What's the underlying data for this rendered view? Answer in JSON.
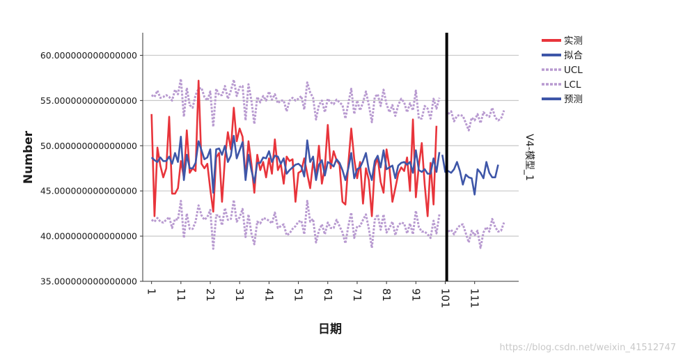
{
  "chart_data": {
    "type": "line",
    "ylabel": "Number",
    "xlabel": "日期",
    "panel_label": "V4-模型_1",
    "ylim": [
      35,
      62.5
    ],
    "yticks": [
      35,
      40,
      45,
      50,
      55,
      60
    ],
    "ytick_labels": [
      "35.000000000000000",
      "40.000000000000000",
      "45.000000000000000",
      "50.000000000000000",
      "55.000000000000000",
      "60.000000000000000"
    ],
    "xlim": [
      -2,
      126
    ],
    "xticks": [
      1,
      11,
      21,
      31,
      41,
      51,
      61,
      71,
      81,
      91,
      101,
      111
    ],
    "xtick_labels": [
      "1",
      "11",
      "21",
      "31",
      "41",
      "51",
      "61",
      "71",
      "81",
      "91",
      "101",
      "111"
    ],
    "forecast_start": 102,
    "grid": "horizontal",
    "legend_position": "top-right",
    "series": [
      {
        "name": "实测",
        "color": "#e8343b",
        "style": "solid",
        "start": 1,
        "values": [
          53.5,
          42.2,
          49.8,
          47.8,
          46.5,
          47.5,
          53.2,
          44.7,
          44.7,
          45.3,
          48.3,
          46.5,
          51.7,
          47.0,
          47.5,
          47.2,
          57.2,
          48.0,
          47.5,
          48.0,
          45.2,
          42.7,
          48.7,
          49.2,
          43.8,
          48.6,
          51.5,
          49.6,
          54.2,
          50.5,
          51.9,
          51.0,
          46.5,
          50.5,
          48.0,
          44.8,
          49.0,
          47.3,
          48.2,
          46.5,
          48.6,
          46.9,
          50.7,
          47.3,
          48.0,
          45.8,
          48.8,
          48.3,
          48.5,
          43.8,
          47.0,
          47.2,
          48.6,
          46.9,
          45.3,
          48.2,
          46.7,
          50.0,
          45.8,
          47.6,
          52.3,
          47.5,
          49.4,
          48.4,
          47.9,
          43.8,
          43.5,
          48.0,
          51.9,
          48.5,
          46.4,
          48.2,
          43.6,
          47.5,
          46.2,
          42.2,
          47.7,
          48.7,
          46.0,
          44.8,
          49.6,
          47.6,
          43.8,
          45.3,
          46.9,
          47.6,
          47.2,
          48.7,
          45.0,
          52.9,
          44.3,
          47.8,
          50.3,
          45.7,
          42.2,
          48.1,
          43.5,
          52.2
        ]
      },
      {
        "name": "拟合",
        "color": "#3e56a8",
        "style": "solid",
        "start": 1,
        "values": [
          48.7,
          48.4,
          48.2,
          48.7,
          48.3,
          48.3,
          48.8,
          48.0,
          49.2,
          48.2,
          51.0,
          46.2,
          49.0,
          47.5,
          47.5,
          48.1,
          50.5,
          49.5,
          48.5,
          48.7,
          49.6,
          44.8,
          49.6,
          49.7,
          49.0,
          50.0,
          48.2,
          48.9,
          51.1,
          48.6,
          49.5,
          50.4,
          46.2,
          49.0,
          47.3,
          45.9,
          48.1,
          48.1,
          48.7,
          48.6,
          49.4,
          48.2,
          48.9,
          48.8,
          48.0,
          48.6,
          46.9,
          47.3,
          47.6,
          47.9,
          48.0,
          47.7,
          46.6,
          50.6,
          48.2,
          48.8,
          46.2,
          47.9,
          48.4,
          46.7,
          48.2,
          48.0,
          47.7,
          48.5,
          48.1,
          47.3,
          46.2,
          47.5,
          49.2,
          46.4,
          47.4,
          47.6,
          48.3,
          49.2,
          47.3,
          46.2,
          48.3,
          48.9,
          47.6,
          49.5,
          47.4,
          47.6,
          47.8,
          46.4,
          47.8,
          48.1,
          48.2,
          47.9,
          48.2,
          47.0,
          49.5,
          47.3,
          47.1,
          47.4,
          46.9,
          46.9,
          48.6,
          47.1,
          49.3
        ]
      },
      {
        "name": "UCL",
        "color": "#b89ad0",
        "style": "dashed",
        "start": 1,
        "values": [
          55.6,
          55.4,
          56.1,
          55.3,
          55.4,
          55.6,
          55.4,
          55.0,
          56.2,
          55.7,
          57.4,
          53.2,
          56.4,
          54.5,
          54.2,
          55.6,
          56.3,
          56.4,
          55.4,
          55.0,
          56.0,
          52.1,
          56.3,
          55.6,
          55.6,
          56.6,
          55.2,
          56.1,
          57.3,
          55.5,
          56.5,
          56.6,
          52.8,
          56.8,
          55.0,
          52.4,
          55.4,
          54.8,
          55.5,
          55.0,
          56.0,
          55.1,
          55.7,
          54.7,
          55.0,
          55.0,
          53.8,
          55.0,
          55.3,
          55.0,
          55.2,
          55.5,
          54.0,
          57.0,
          55.9,
          55.3,
          52.9,
          54.5,
          55.0,
          53.7,
          55.2,
          54.8,
          54.6,
          55.1,
          54.8,
          54.5,
          53.0,
          54.7,
          56.3,
          53.5,
          55.0,
          53.9,
          54.8,
          56.0,
          54.5,
          52.6,
          55.4,
          55.7,
          54.4,
          56.2,
          54.6,
          53.7,
          54.5,
          53.3,
          54.5,
          55.2,
          54.8,
          53.7,
          54.7,
          53.9,
          56.1,
          53.0,
          53.0,
          54.4,
          54.1,
          53.0,
          55.2,
          54.1,
          55.3
        ]
      },
      {
        "name": "LCL",
        "color": "#b89ad0",
        "style": "dashed",
        "start": 1,
        "values": [
          41.8,
          41.6,
          42.0,
          41.6,
          41.5,
          41.8,
          42.1,
          40.9,
          41.9,
          41.8,
          43.9,
          39.8,
          42.5,
          40.8,
          40.8,
          41.6,
          43.4,
          42.3,
          41.8,
          42.1,
          42.9,
          38.6,
          42.3,
          42.3,
          41.2,
          43.1,
          41.8,
          41.9,
          44.0,
          41.6,
          42.1,
          43.0,
          39.9,
          42.4,
          40.3,
          39.1,
          41.6,
          41.4,
          42.0,
          41.9,
          41.7,
          41.4,
          42.6,
          40.9,
          41.1,
          41.3,
          40.1,
          40.3,
          40.8,
          41.1,
          41.6,
          41.7,
          40.2,
          43.9,
          41.6,
          41.9,
          39.3,
          40.6,
          41.3,
          40.2,
          41.5,
          40.9,
          40.9,
          41.8,
          41.1,
          40.4,
          39.2,
          41.1,
          42.6,
          39.8,
          41.1,
          41.1,
          41.8,
          42.4,
          40.8,
          38.7,
          41.8,
          42.4,
          40.7,
          42.4,
          40.4,
          40.9,
          41.6,
          40.1,
          41.2,
          41.5,
          41.4,
          40.3,
          41.4,
          40.2,
          42.8,
          41.0,
          40.5,
          40.5,
          40.2,
          39.8,
          41.7,
          40.3,
          42.4
        ]
      },
      {
        "name": "预测",
        "color": "#3e56a8",
        "style": "solid",
        "start": 100,
        "values": [
          49.0,
          47.1,
          47.2,
          47.0,
          47.4,
          48.2,
          47.2,
          45.7,
          46.8,
          46.5,
          46.4,
          44.6,
          47.4,
          47.0,
          46.4,
          48.2,
          47.0,
          46.5,
          46.5,
          47.9
        ]
      },
      {
        "name": "UCL-forecast",
        "color": "#b89ad0",
        "style": "dashed",
        "start": 102,
        "values": [
          53.5,
          53.8,
          52.7,
          53.3,
          53.4,
          53.3,
          52.5,
          51.7,
          53.1,
          52.8,
          53.5,
          52.5,
          53.7,
          53.4,
          53.2,
          54.2,
          53.1,
          52.8,
          53.0,
          53.9
        ]
      },
      {
        "name": "LCL-forecast",
        "color": "#b89ad0",
        "style": "dashed",
        "start": 102,
        "values": [
          40.5,
          40.7,
          40.2,
          40.8,
          41.2,
          41.3,
          40.3,
          39.3,
          40.6,
          40.1,
          40.6,
          38.7,
          40.4,
          41.0,
          40.5,
          41.9,
          41.0,
          40.5,
          40.6,
          41.5
        ]
      }
    ],
    "legend": [
      {
        "label": "实测",
        "color": "#e8343b",
        "style": "solid"
      },
      {
        "label": "拟合",
        "color": "#3e56a8",
        "style": "solid"
      },
      {
        "label": "UCL",
        "color": "#b89ad0",
        "style": "dashed"
      },
      {
        "label": "LCL",
        "color": "#b89ad0",
        "style": "dashed"
      },
      {
        "label": "预测",
        "color": "#3e56a8",
        "style": "solid"
      }
    ]
  },
  "watermark": "https://blog.csdn.net/weixin_41512747"
}
